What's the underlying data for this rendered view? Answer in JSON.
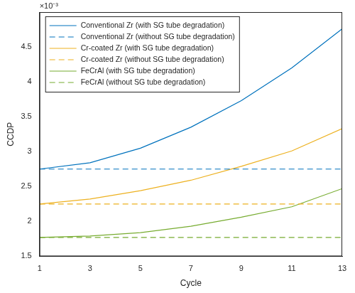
{
  "chart_data": {
    "type": "line",
    "x_label": "Cycle",
    "y_label": "CCDP",
    "annotations": [
      "×10⁻³"
    ],
    "x": [
      1,
      3,
      5,
      7,
      9,
      11,
      13
    ],
    "xlim": [
      1,
      13
    ],
    "xticks": [
      1,
      3,
      5,
      7,
      9,
      11,
      13
    ],
    "ylim": [
      0.0015,
      0.005
    ],
    "yticks": [
      {
        "value": 0.0015,
        "label": "1.5"
      },
      {
        "value": 0.002,
        "label": "2"
      },
      {
        "value": 0.0025,
        "label": "2.5"
      },
      {
        "value": 0.003,
        "label": "3"
      },
      {
        "value": 0.0035,
        "label": "3.5"
      },
      {
        "value": 0.004,
        "label": "4"
      },
      {
        "value": 0.0045,
        "label": "4.5"
      }
    ],
    "grid": false,
    "legend": "upper left",
    "series": [
      {
        "name": "Conventional Zr (with SG tube degradation)",
        "color": "#0072BD",
        "line_style": "solid",
        "marker": "none",
        "values": [
          0.00275,
          0.00284,
          0.00305,
          0.00335,
          0.00373,
          0.0042,
          0.00476
        ]
      },
      {
        "name": "Conventional Zr (without SG tube degradation)",
        "color": "#0072BD",
        "line_style": "dashed",
        "marker": "none",
        "values": [
          0.00275,
          0.00275,
          0.00275,
          0.00275,
          0.00275,
          0.00275,
          0.00275
        ]
      },
      {
        "name": "Cr-coated Zr (with SG tube degradation)",
        "color": "#EDB120",
        "line_style": "solid",
        "marker": "none",
        "values": [
          0.00225,
          0.00232,
          0.00244,
          0.00259,
          0.00279,
          0.00301,
          0.00333
        ]
      },
      {
        "name": "Cr-coated Zr (without SG tube degradation)",
        "color": "#EDB120",
        "line_style": "dashed",
        "marker": "none",
        "values": [
          0.00225,
          0.00225,
          0.00225,
          0.00225,
          0.00225,
          0.00225,
          0.00225
        ]
      },
      {
        "name": "FeCrAl (with SG tube degradation)",
        "color": "#77AC30",
        "line_style": "solid",
        "marker": "none",
        "values": [
          0.00177,
          0.00179,
          0.00184,
          0.00193,
          0.00206,
          0.00221,
          0.00247
        ]
      },
      {
        "name": "FeCrAl (without SG tube degradation)",
        "color": "#77AC30",
        "line_style": "dashed",
        "marker": "none",
        "values": [
          0.00177,
          0.00177,
          0.00177,
          0.00177,
          0.00177,
          0.00177,
          0.00177
        ]
      }
    ]
  }
}
